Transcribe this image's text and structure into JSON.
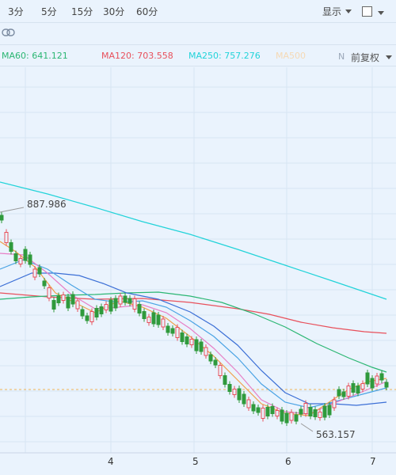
{
  "periods": [
    "3分",
    "5分",
    "15分",
    "30分",
    "60分"
  ],
  "display_label": "显示",
  "fq_label": "前复权",
  "n_mark": "N",
  "ma": [
    {
      "label": "MA60: 641.121",
      "color": "#2bb673"
    },
    {
      "label": "MA120: 703.558",
      "color": "#e8505b"
    },
    {
      "label": "MA250: 757.276",
      "color": "#22d3d9"
    },
    {
      "label": "MA500",
      "color": "#f5d9b5"
    }
  ],
  "price_high_label": "887.986",
  "price_low_label": "563.157",
  "x_labels": [
    "4",
    "5",
    "6",
    "7"
  ],
  "colors": {
    "up": "#e8505b",
    "down": "#2f9a3c",
    "ma5": "#f0a04b",
    "ma10": "#e77fc6",
    "ma20": "#4aa3e4",
    "ma30": "#3b6fd6",
    "ma60": "#2bb673",
    "ma120": "#e8505b",
    "ma250": "#22d3d9",
    "dashline": "#f0b457"
  }
}
